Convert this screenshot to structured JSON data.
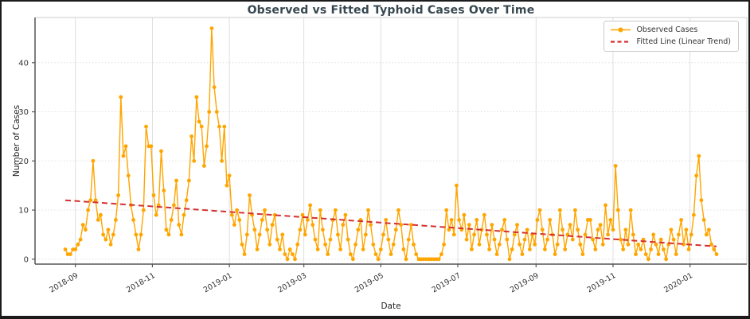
{
  "figure": {
    "title": "Observed vs Fitted Typhoid Cases Over Time"
  },
  "chart_data": {
    "type": "line",
    "title": "Observed vs Fitted Typhoid Cases Over Time",
    "xlabel": "Date",
    "ylabel": "Number of Cases",
    "grid": true,
    "x_tick_labels": [
      "2018-09",
      "2018-11",
      "2019-01",
      "2019-03",
      "2019-05",
      "2019-07",
      "2019-09",
      "2019-11",
      "2020-01"
    ],
    "x_tick_days": [
      8,
      69,
      130,
      189,
      250,
      311,
      373,
      434,
      495
    ],
    "x_tick_rotation": -30,
    "y_ticks": [
      0,
      10,
      20,
      30,
      40
    ],
    "xlim_days": [
      -24,
      540
    ],
    "ylim": [
      -1,
      49.2
    ],
    "legend": {
      "position": "upper right",
      "entries": [
        {
          "label": "Observed Cases",
          "color": "#FFA500",
          "style": "line-marker"
        },
        {
          "label": "Fitted Line (Linear Trend)",
          "color": "#D62F2F",
          "style": "dashed"
        }
      ]
    },
    "series": [
      {
        "name": "Observed Cases",
        "type": "line",
        "marker": "circle",
        "color": "#FFA500",
        "day_start": 0,
        "day_step": 2,
        "values": [
          2,
          1,
          1,
          2,
          2,
          3,
          4,
          7,
          6,
          10,
          12,
          20,
          12,
          8,
          9,
          5,
          4,
          6,
          3,
          5,
          8,
          13,
          33,
          21,
          23,
          17,
          11,
          8,
          5,
          2,
          5,
          10,
          27,
          23,
          23,
          13,
          9,
          11,
          22,
          14,
          6,
          5,
          8,
          11,
          16,
          7,
          5,
          9,
          12,
          16,
          25,
          20,
          33,
          28,
          27,
          19,
          23,
          30,
          47,
          35,
          30,
          27,
          20,
          27,
          15,
          17,
          9,
          7,
          10,
          8,
          3,
          1,
          5,
          13,
          9,
          6,
          2,
          5,
          8,
          10,
          6,
          3,
          7,
          9,
          4,
          2,
          5,
          1,
          0,
          2,
          1,
          0,
          3,
          6,
          9,
          5,
          8,
          11,
          7,
          4,
          2,
          10,
          6,
          3,
          1,
          4,
          8,
          10,
          5,
          2,
          7,
          9,
          4,
          1,
          0,
          3,
          6,
          8,
          2,
          5,
          10,
          7,
          3,
          1,
          0,
          2,
          5,
          8,
          4,
          1,
          3,
          6,
          10,
          7,
          2,
          0,
          4,
          7,
          3,
          1,
          0,
          0,
          0,
          0,
          0,
          0,
          0,
          0,
          0,
          1,
          3,
          10,
          6,
          8,
          5,
          15,
          8,
          6,
          9,
          4,
          7,
          2,
          5,
          8,
          3,
          6,
          9,
          5,
          2,
          7,
          4,
          1,
          3,
          6,
          8,
          4,
          0,
          2,
          5,
          7,
          3,
          1,
          4,
          6,
          2,
          5,
          3,
          8,
          10,
          6,
          2,
          4,
          8,
          5,
          1,
          3,
          10,
          6,
          2,
          5,
          7,
          4,
          10,
          6,
          3,
          1,
          5,
          8,
          8,
          4,
          2,
          6,
          7,
          3,
          11,
          5,
          8,
          6,
          19,
          10,
          4,
          2,
          6,
          3,
          10,
          5,
          1,
          3,
          2,
          4,
          1,
          0,
          2,
          5,
          3,
          1,
          4,
          2,
          0,
          3,
          6,
          4,
          1,
          5,
          8,
          3,
          6,
          2,
          5,
          9,
          17,
          21,
          12,
          8,
          5,
          6,
          3,
          2,
          1
        ]
      },
      {
        "name": "Fitted Line (Linear Trend)",
        "type": "line",
        "style": "dashed",
        "color": "#D62F2F",
        "points": [
          {
            "day": 0,
            "value": 12.0
          },
          {
            "day": 516,
            "value": 2.6
          }
        ]
      }
    ],
    "colors": {
      "observed": "#FFA500",
      "fitted": "#D62F2F",
      "grid": "#DBDBDB",
      "axis_spine": "#555555",
      "minor_spine": "#CCCCCC",
      "title_text": "#37474F",
      "tick_text": "#333333"
    }
  }
}
